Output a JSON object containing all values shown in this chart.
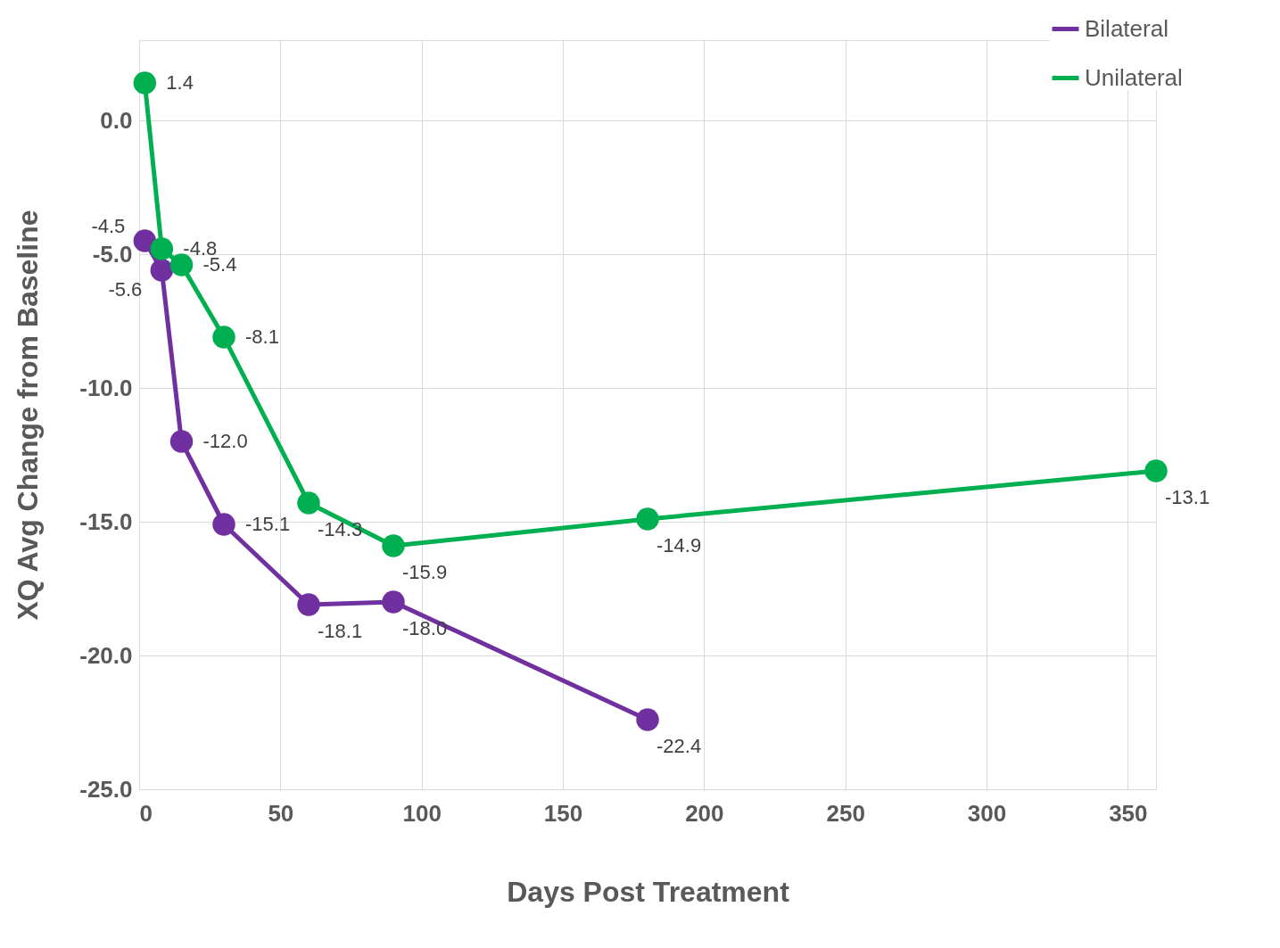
{
  "chart_data": {
    "type": "line",
    "xlabel": "Days Post Treatment",
    "ylabel": "XQ Avg Change from Baseline",
    "series": [
      {
        "name": "Bilateral",
        "color": "#7030a0",
        "x": [
          2,
          8,
          15,
          30,
          60,
          90,
          180
        ],
        "values": [
          -4.5,
          -5.6,
          -12.0,
          -15.1,
          -18.1,
          -18.0,
          -22.4
        ],
        "value_labels": [
          "-4.5",
          "-5.6",
          "-12.0",
          "-15.1",
          "-18.1",
          "-18.0",
          "-22.4"
        ]
      },
      {
        "name": "Unilateral",
        "color": "#00b050",
        "x": [
          2,
          8,
          15,
          30,
          60,
          90,
          180,
          360
        ],
        "values": [
          1.4,
          -4.8,
          -5.4,
          -8.1,
          -14.3,
          -15.9,
          -14.9,
          -13.1
        ],
        "value_labels": [
          "1.4",
          "-4.8",
          "-5.4",
          "-8.1",
          "-14.3",
          "-15.9",
          "-14.9",
          "-13.1"
        ]
      }
    ],
    "xlim": [
      0,
      360
    ],
    "xticks": [
      0,
      50,
      100,
      150,
      200,
      250,
      300,
      350
    ],
    "ylim": [
      -25,
      3
    ],
    "yticks": [
      {
        "value": 0,
        "label": "0.0"
      },
      {
        "value": -5,
        "label": "-5.0"
      },
      {
        "value": -10,
        "label": "-10.0"
      },
      {
        "value": -15,
        "label": "-15.0"
      },
      {
        "value": -20,
        "label": "-20.0"
      },
      {
        "value": -25,
        "label": "-25.0"
      }
    ],
    "grid": true,
    "legend": "top right",
    "marker": "circle",
    "line_style": "solid"
  }
}
